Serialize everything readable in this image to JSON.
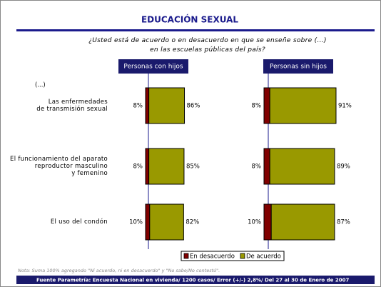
{
  "title": "EDUCACIÓN SEXUAL",
  "question": "¿Usted está de acuerdo o en desacuerdo en que se enseñe sobre (...)\nen las escuelas públicas del país?",
  "category_header": "(...)",
  "note": "Nota: Suma 100% agregando \"Ni acuerdo, ni en desacuerdo\" y \"No sabe/No contestó\".",
  "source": "Fuente Parametría: Encuesta Nacional en vivienda/ 1200 casos/ Error (+/-) 2,8%/  Del 27 al 30 de Enero de 2007",
  "chart_data": [
    {
      "type": "bar",
      "title": "Personas con hijos",
      "categories": [
        "Las enfermedades\nde transmisión sexual",
        "El funcionamiento del aparato\nreproductor masculino\ny femenino",
        "El uso del condón"
      ],
      "xlim": [
        0,
        100
      ],
      "series": [
        {
          "name": "En desacuerdo",
          "color": "#800000",
          "values": [
            8,
            8,
            10
          ],
          "value_labels": [
            "8%",
            "8%",
            "10%"
          ]
        },
        {
          "name": "De acuerdo",
          "color": "#999900",
          "values": [
            86,
            85,
            82
          ],
          "value_labels": [
            "86%",
            "85%",
            "82%"
          ]
        }
      ]
    },
    {
      "type": "bar",
      "title": "Personas sin hijos",
      "xlim": [
        0,
        100
      ],
      "series": [
        {
          "color": "#800000",
          "values": [
            8,
            8,
            10
          ],
          "value_labels": [
            "8%",
            "8%",
            "10%"
          ]
        },
        {
          "color": "#999900",
          "values": [
            91,
            89,
            87
          ],
          "value_labels": [
            "91%",
            "89%",
            "87%"
          ]
        }
      ]
    }
  ]
}
